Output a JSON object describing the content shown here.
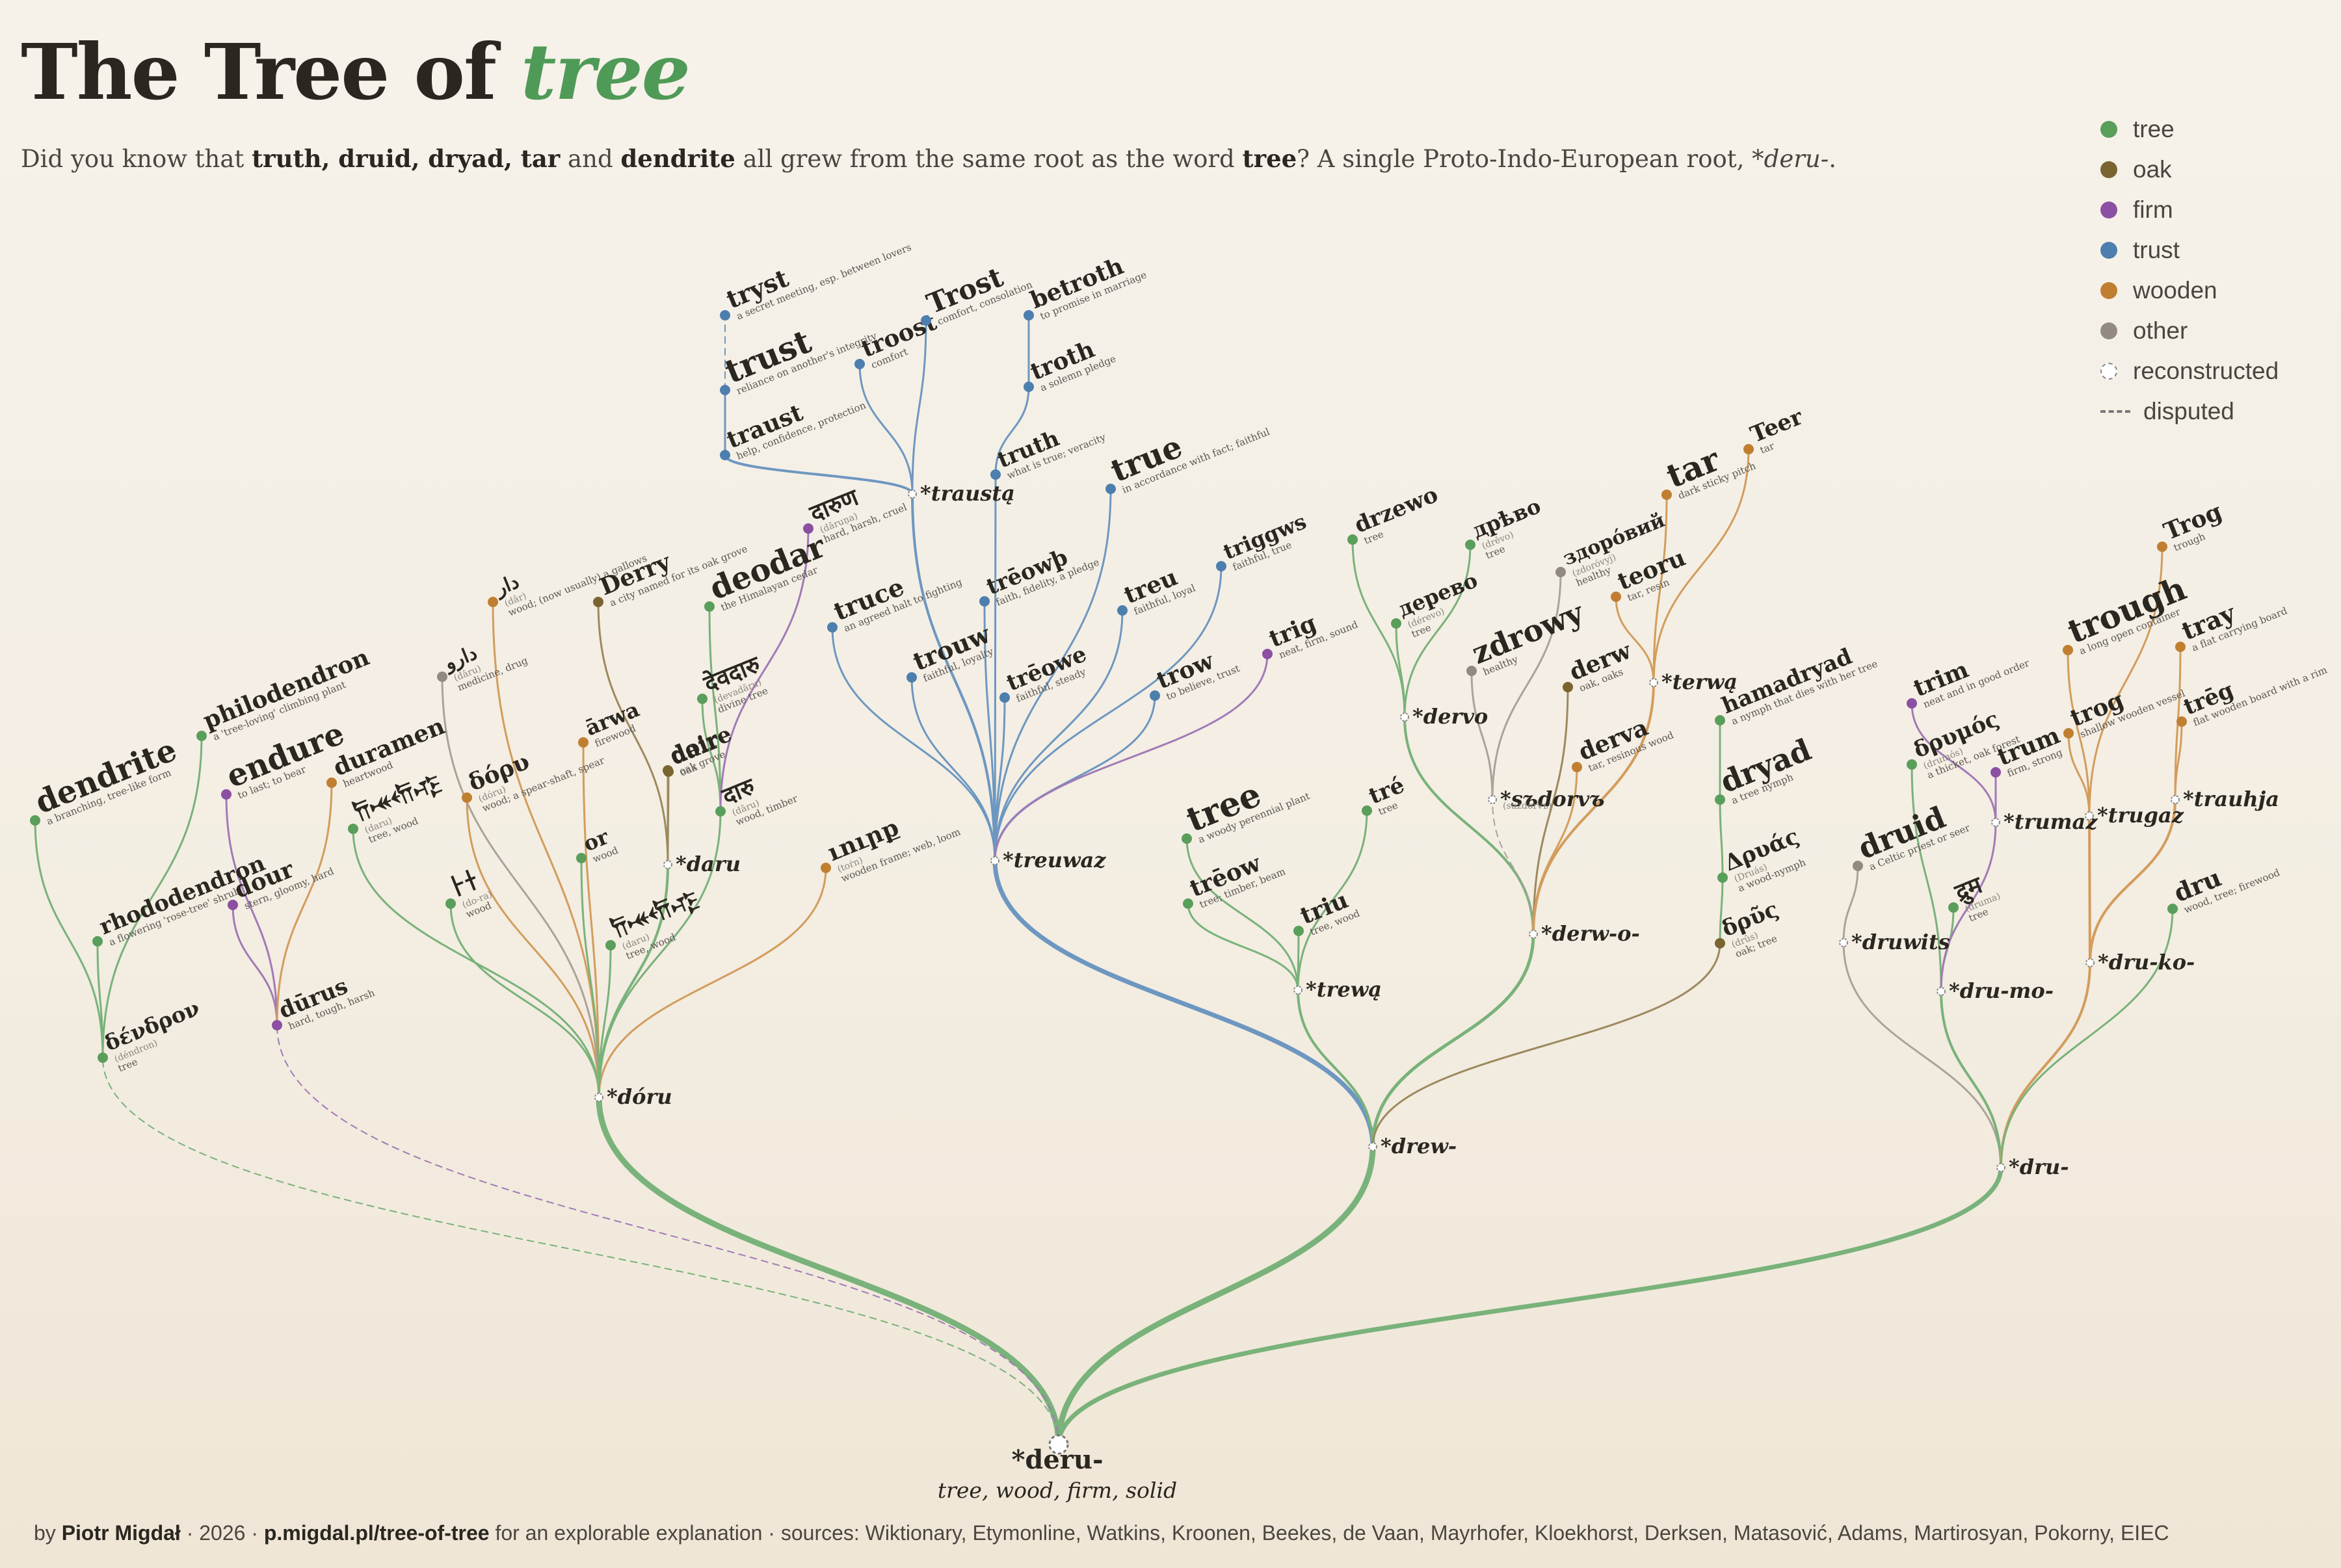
{
  "header": {
    "title_pre": "The Tree of ",
    "title_em": "tree",
    "subtitle_pre": "Did you know that ",
    "subtitle_bold1": "truth, druid, dryad, tar",
    "subtitle_and": " and ",
    "subtitle_bold2": "dendrite",
    "subtitle_mid": " all grew from the same root as the word ",
    "subtitle_bold3": "tree",
    "subtitle_post": "? A single Proto-Indo-European root, ",
    "subtitle_root": "*deru-",
    "subtitle_end": "."
  },
  "legend": [
    {
      "label": "tree",
      "color": "#5a9e5c"
    },
    {
      "label": "oak",
      "color": "#7a6430"
    },
    {
      "label": "firm",
      "color": "#8b4fa3"
    },
    {
      "label": "trust",
      "color": "#4d7fae"
    },
    {
      "label": "wooden",
      "color": "#c07f30"
    },
    {
      "label": "other",
      "color": "#928a80"
    },
    {
      "label": "reconstructed",
      "color": "#ffffff"
    },
    {
      "label": "disputed",
      "color": "#777777"
    }
  ],
  "root": {
    "word": "*deru-",
    "gloss": "tree, wood, firm, solid"
  },
  "nodes": [
    {
      "id": "n1",
      "w": "*dóru",
      "g": "",
      "r": true,
      "c": "green"
    },
    {
      "id": "n2",
      "w": "*drew-",
      "g": "",
      "r": true,
      "c": "green"
    },
    {
      "id": "n3",
      "w": "*dru-",
      "g": "",
      "r": true,
      "c": "green"
    },
    {
      "id": "n4",
      "w": "δένδρον",
      "g": "tree",
      "t": "(déndron)",
      "c": "green"
    },
    {
      "id": "n5",
      "w": "dendrite",
      "g": "a branching, tree-like form",
      "c": "green"
    },
    {
      "id": "n6",
      "w": "rhododendron",
      "g": "a flowering 'rose-tree' shrub",
      "c": "green"
    },
    {
      "id": "n7",
      "w": "philodendron",
      "g": "a 'tree-loving' climbing plant",
      "c": "green"
    },
    {
      "id": "n8",
      "w": "dūrus",
      "g": "hard, tough, harsh",
      "c": "purple"
    },
    {
      "id": "n9",
      "w": "endure",
      "g": "to last; to bear",
      "c": "purple"
    },
    {
      "id": "n10",
      "w": "dour",
      "g": "stern, gloomy, hard",
      "c": "purple"
    },
    {
      "id": "n11",
      "w": "duramen",
      "g": "heartwood",
      "c": "orange"
    },
    {
      "id": "n12",
      "w": "𐎭𐎽𐎢𐎺",
      "g": "tree, wood",
      "t": "(daru)",
      "c": "green"
    },
    {
      "id": "n13",
      "w": "𐀅𐀫",
      "g": "wood",
      "t": "(do-ra)",
      "c": "green"
    },
    {
      "id": "n14",
      "w": "δόρυ",
      "g": "wood; a spear-shaft, spear",
      "t": "(dóru)",
      "c": "orange"
    },
    {
      "id": "n15",
      "w": "دارو",
      "g": "medicine, drug",
      "t": "(dâru)",
      "c": "other"
    },
    {
      "id": "n16",
      "w": "دار",
      "g": "wood; (now usually) a gallows",
      "t": "(dâr)",
      "c": "orange"
    },
    {
      "id": "n17",
      "w": "Derry",
      "g": "a city named for its oak grove",
      "c": "brown"
    },
    {
      "id": "n18",
      "w": "ārwa",
      "g": "firewood",
      "c": "orange"
    },
    {
      "id": "n19",
      "w": "or",
      "g": "wood",
      "c": "green"
    },
    {
      "id": "n20",
      "w": "𐎭𐎽𐎢𐎺",
      "g": "tree, wood",
      "t": "(daru)",
      "c": "green"
    },
    {
      "id": "n21",
      "w": "doire",
      "g": "oak grove",
      "c": "brown"
    },
    {
      "id": "n22",
      "w": "dair",
      "g": "oak",
      "c": "brown"
    },
    {
      "id": "n23",
      "w": "*daru",
      "g": "",
      "r": true,
      "c": "green"
    },
    {
      "id": "n24",
      "w": "deodar",
      "g": "the Himalayan cedar",
      "c": "green"
    },
    {
      "id": "n25",
      "w": "देवदारु",
      "g": "divine tree",
      "t": "(devadāru)",
      "c": "green"
    },
    {
      "id": "n26",
      "w": "दारु",
      "g": "wood, timber",
      "t": "(dāru)",
      "c": "green"
    },
    {
      "id": "n27",
      "w": "दारुण",
      "g": "hard, harsh, cruel",
      "t": "(dāruṇa)",
      "c": "purple"
    },
    {
      "id": "n28",
      "w": "ւուրք",
      "g": "wooden frame; web, loom",
      "t": "(toṙn)",
      "c": "orange"
    },
    {
      "id": "n29",
      "w": "*treuwaz",
      "g": "",
      "r": true,
      "c": "blue"
    },
    {
      "id": "n30",
      "w": "tryst",
      "g": "a secret meeting, esp. between lovers",
      "c": "blue"
    },
    {
      "id": "n31",
      "w": "trust",
      "g": "reliance on another's integrity",
      "c": "blue"
    },
    {
      "id": "n32",
      "w": "traust",
      "g": "help, confidence, protection",
      "c": "blue"
    },
    {
      "id": "n33",
      "w": "troost",
      "g": "comfort",
      "c": "blue"
    },
    {
      "id": "n34",
      "w": "Trost",
      "g": "comfort, consolation",
      "c": "blue"
    },
    {
      "id": "n35",
      "w": "*traustą",
      "g": "",
      "r": true,
      "c": "blue"
    },
    {
      "id": "n36",
      "w": "betroth",
      "g": "to promise in marriage",
      "c": "blue"
    },
    {
      "id": "n37",
      "w": "troth",
      "g": "a solemn pledge",
      "c": "blue"
    },
    {
      "id": "n38",
      "w": "truth",
      "g": "what is true; veracity",
      "c": "blue"
    },
    {
      "id": "n39",
      "w": "trēowþ",
      "g": "faith, fidelity, a pledge",
      "c": "blue"
    },
    {
      "id": "n40",
      "w": "true",
      "g": "in accordance with fact; faithful",
      "c": "blue"
    },
    {
      "id": "n41",
      "w": "truce",
      "g": "an agreed halt to fighting",
      "c": "blue"
    },
    {
      "id": "n42",
      "w": "trouw",
      "g": "faithful, loyalty",
      "c": "blue"
    },
    {
      "id": "n43",
      "w": "trēowe",
      "g": "faithful, steady",
      "c": "blue"
    },
    {
      "id": "n44",
      "w": "treu",
      "g": "faithful, loyal",
      "c": "blue"
    },
    {
      "id": "n45",
      "w": "triggws",
      "g": "faithful, true",
      "c": "blue"
    },
    {
      "id": "n46",
      "w": "trow",
      "g": "to believe, trust",
      "c": "blue"
    },
    {
      "id": "n47",
      "w": "trig",
      "g": "neat, firm, sound",
      "c": "purple"
    },
    {
      "id": "n48",
      "w": "tree",
      "g": "a woody perennial plant",
      "c": "green"
    },
    {
      "id": "n49",
      "w": "trēow",
      "g": "tree; timber, beam",
      "c": "green"
    },
    {
      "id": "n50",
      "w": "triu",
      "g": "tree, wood",
      "c": "green"
    },
    {
      "id": "n51",
      "w": "tré",
      "g": "tree",
      "c": "green"
    },
    {
      "id": "n52",
      "w": "*trewą",
      "g": "",
      "r": true,
      "c": "green"
    },
    {
      "id": "n53",
      "w": "drzewo",
      "g": "tree",
      "c": "green"
    },
    {
      "id": "n54",
      "w": "дрѣво",
      "g": "tree",
      "t": "(drěvo)",
      "c": "green"
    },
    {
      "id": "n55",
      "w": "дерево",
      "g": "tree",
      "t": "(dérevo)",
      "c": "green"
    },
    {
      "id": "n56",
      "w": "*dervo",
      "g": "",
      "r": true,
      "c": "green"
    },
    {
      "id": "n57",
      "w": "zdrowy",
      "g": "healthy",
      "c": "other"
    },
    {
      "id": "n58",
      "w": "здоро́вий",
      "g": "healthy",
      "t": "(zdoróvyj)",
      "c": "other"
    },
    {
      "id": "n59",
      "w": "*sъdorvъ",
      "g": "",
      "t": "(suzdorvъ)",
      "r": true,
      "c": "other"
    },
    {
      "id": "n60",
      "w": "derw",
      "g": "oak, oaks",
      "c": "brown"
    },
    {
      "id": "n61",
      "w": "derva",
      "g": "tar, resinous wood",
      "c": "orange"
    },
    {
      "id": "n62",
      "w": "tar",
      "g": "dark sticky pitch",
      "c": "orange"
    },
    {
      "id": "n63",
      "w": "Teer",
      "g": "tar",
      "c": "orange"
    },
    {
      "id": "n64",
      "w": "teoru",
      "g": "tar, resin",
      "c": "orange"
    },
    {
      "id": "n65",
      "w": "*terwą",
      "g": "",
      "r": true,
      "c": "orange"
    },
    {
      "id": "n66",
      "w": "*derw-o-",
      "g": "",
      "r": true,
      "c": "green"
    },
    {
      "id": "n67",
      "w": "hamadryad",
      "g": "a nymph that dies with her tree",
      "c": "green"
    },
    {
      "id": "n68",
      "w": "dryad",
      "g": "a tree nymph",
      "c": "green"
    },
    {
      "id": "n69",
      "w": "Δρυάς",
      "g": "a wood-nymph",
      "t": "(Druás)",
      "c": "green"
    },
    {
      "id": "n70",
      "w": "δρῦς",
      "g": "oak; tree",
      "t": "(drûs)",
      "c": "brown"
    },
    {
      "id": "n71",
      "w": "druid",
      "g": "a Celtic priest or seer",
      "c": "other"
    },
    {
      "id": "n72",
      "w": "*druwits",
      "g": "",
      "r": true,
      "c": "other"
    },
    {
      "id": "n73",
      "w": "trim",
      "g": "neat and in good order",
      "c": "purple"
    },
    {
      "id": "n74",
      "w": "δρυμός",
      "g": "a thicket, oak forest",
      "t": "(drumós)",
      "c": "green"
    },
    {
      "id": "n75",
      "w": "trum",
      "g": "firm, strong",
      "c": "purple"
    },
    {
      "id": "n76",
      "w": "द्रुम",
      "g": "tree",
      "t": "(druma)",
      "c": "green"
    },
    {
      "id": "n77",
      "w": "*trumaz",
      "g": "",
      "r": true,
      "c": "purple"
    },
    {
      "id": "n78",
      "w": "*dru-mo-",
      "g": "",
      "r": true,
      "c": "green"
    },
    {
      "id": "n79",
      "w": "trough",
      "g": "a long open container",
      "c": "orange"
    },
    {
      "id": "n80",
      "w": "Trog",
      "g": "trough",
      "c": "orange"
    },
    {
      "id": "n81",
      "w": "trog",
      "g": "shallow wooden vessel",
      "c": "orange"
    },
    {
      "id": "n82",
      "w": "*trugaz",
      "g": "",
      "r": true,
      "c": "orange"
    },
    {
      "id": "n83",
      "w": "tray",
      "g": "a flat carrying board",
      "c": "orange"
    },
    {
      "id": "n84",
      "w": "trēg",
      "g": "flat wooden board with a rim",
      "c": "orange"
    },
    {
      "id": "n85",
      "w": "*trauhja",
      "g": "",
      "r": true,
      "c": "orange"
    },
    {
      "id": "n86",
      "w": "*dru-ko-",
      "g": "",
      "r": true,
      "c": "orange"
    },
    {
      "id": "n87",
      "w": "dru",
      "g": "wood, tree; firewood",
      "c": "green"
    }
  ],
  "footer": {
    "by": "by ",
    "author": "Piotr Migdał",
    "year": " · 2026 · ",
    "url": "p.migdal.pl/tree-of-tree",
    "rest": " for an explorable explanation · sources: Wiktionary, Etymonline, Watkins, Kroonen, Beekes, de Vaan, Mayrhofer, Kloekhorst, Derksen, Matasović, Adams, Martirosyan, Pokorny, EIEC"
  }
}
